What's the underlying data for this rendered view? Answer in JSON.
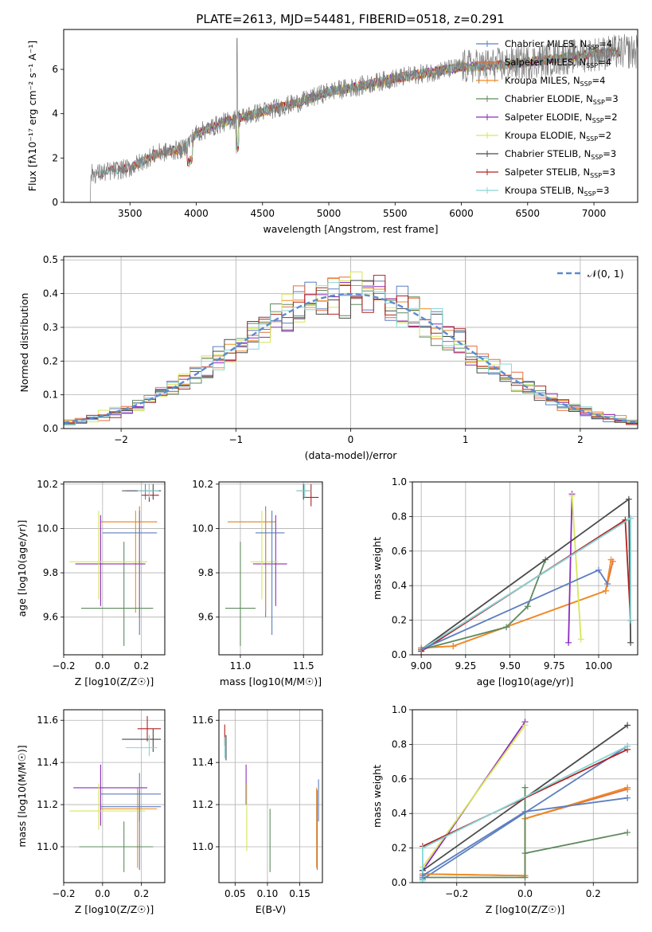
{
  "title": "PLATE=2613, MJD=54481, FIBERID=0518, z=0.291",
  "models": [
    {
      "name": "Chabrier MILES",
      "nssp": "4",
      "color": "#5d7fbf"
    },
    {
      "name": "Salpeter MILES",
      "nssp": "4",
      "color": "#e26f3b"
    },
    {
      "name": "Kroupa MILES",
      "nssp": "4",
      "color": "#f08a24"
    },
    {
      "name": "Chabrier ELODIE",
      "nssp": "3",
      "color": "#5e8a5e"
    },
    {
      "name": "Salpeter ELODIE",
      "nssp": "2",
      "color": "#8c2dbf"
    },
    {
      "name": "Kroupa ELODIE",
      "nssp": "2",
      "color": "#d6e65a"
    },
    {
      "name": "Chabrier STELIB",
      "nssp": "3",
      "color": "#4a4a4a"
    },
    {
      "name": "Salpeter STELIB",
      "nssp": "3",
      "color": "#b22222"
    },
    {
      "name": "Kroupa STELIB",
      "nssp": "3",
      "color": "#87d5d5"
    }
  ],
  "legend_prefix": "N",
  "legend_sub": "SSP",
  "chart_data": [
    {
      "type": "line",
      "panel": "spectrum",
      "xlabel": "wavelength [Angstrom, rest frame]",
      "ylabel": "Flux [f",
      "ylabel_full": "Flux [fλ10⁻¹⁷ erg cm⁻² s⁻¹ A⁻¹]",
      "xlim": [
        3000,
        7330
      ],
      "ylim": [
        0,
        7.8
      ],
      "xticks": [
        "3500",
        "4000",
        "4500",
        "5000",
        "5500",
        "6000",
        "6500",
        "7000"
      ],
      "xtick_values": [
        3500,
        4000,
        4500,
        5000,
        5500,
        6000,
        6500,
        7000
      ],
      "yticks": [
        "0",
        "2",
        "4",
        "6"
      ],
      "ytick_values": [
        0,
        2,
        4,
        6
      ],
      "continuum": {
        "x": [
          3200,
          3250,
          3500,
          3700,
          3900,
          4000,
          4200,
          4500,
          4800,
          5000,
          5200,
          5500,
          5800,
          6000,
          6300,
          6600,
          7000,
          7200
        ],
        "y": [
          1.3,
          1.3,
          1.55,
          2.2,
          2.4,
          3.1,
          3.6,
          4.1,
          4.55,
          5.0,
          5.2,
          5.6,
          5.9,
          6.1,
          6.2,
          6.4,
          6.7,
          6.8
        ]
      },
      "legend": "upper-right",
      "grid": false
    },
    {
      "type": "step",
      "panel": "residuals",
      "xlabel": "(data-model)/error",
      "ylabel": "Normed distribution",
      "xlim": [
        -2.5,
        2.5
      ],
      "ylim": [
        0,
        0.51
      ],
      "xticks": [
        "−2",
        "−1",
        "0",
        "1",
        "2"
      ],
      "xtick_values": [
        -2,
        -1,
        0,
        1,
        2
      ],
      "yticks": [
        "0.0",
        "0.1",
        "0.2",
        "0.3",
        "0.4",
        "0.5"
      ],
      "ytick_values": [
        0,
        0.1,
        0.2,
        0.3,
        0.4,
        0.5
      ],
      "normal_label": "𝒩(0, 1)",
      "normal_color": "#5b8bd0",
      "legend": "upper-right",
      "grid": true
    },
    {
      "type": "errorbar",
      "panel": "age_vs_Z",
      "xlabel": "Z [log10(Z/Z☉)]",
      "ylabel": "age  [log10(age/yr)]",
      "xlim": [
        -0.2,
        0.32
      ],
      "ylim": [
        9.43,
        10.21
      ],
      "xticks": [
        "−0.2",
        "0.0",
        "0.2"
      ],
      "xtick_values": [
        -0.2,
        0,
        0.2
      ],
      "yticks": [
        "9.6",
        "9.8",
        "10.0",
        "10.2"
      ],
      "ytick_values": [
        9.6,
        9.8,
        10.0,
        10.2
      ],
      "points": [
        {
          "m": 0,
          "x": 0.22,
          "xe": [
            0.12,
            0.3
          ],
          "y": 10.17,
          "ye": [
            10.13,
            10.2
          ]
        },
        {
          "m": 1,
          "x": 0.19,
          "xe": [
            0.0,
            0.28
          ],
          "y": 10.03,
          "ye": [
            9.6,
            10.1
          ]
        },
        {
          "m": 2,
          "x": 0.17,
          "xe": [
            -0.01,
            0.27
          ],
          "y": 10.03,
          "ye": [
            9.62,
            10.08
          ]
        },
        {
          "m": 3,
          "x": 0.11,
          "xe": [
            -0.11,
            0.26
          ],
          "y": 9.64,
          "ye": [
            9.47,
            9.94
          ]
        },
        {
          "m": 4,
          "x": -0.01,
          "xe": [
            -0.14,
            0.22
          ],
          "y": 9.84,
          "ye": [
            9.65,
            10.06
          ]
        },
        {
          "m": 5,
          "x": -0.02,
          "xe": [
            -0.17,
            0.23
          ],
          "y": 9.85,
          "ye": [
            9.68,
            10.08
          ]
        },
        {
          "m": 6,
          "x": 0.26,
          "xe": [
            0.1,
            0.3
          ],
          "y": 10.17,
          "ye": [
            10.13,
            10.2
          ]
        },
        {
          "m": 7,
          "x": 0.24,
          "xe": [
            0.2,
            0.29
          ],
          "y": 10.15,
          "ye": [
            10.12,
            10.2
          ]
        },
        {
          "m": 8,
          "x": 0.24,
          "xe": [
            0.18,
            0.29
          ],
          "y": 10.17,
          "ye": [
            10.14,
            10.2
          ]
        },
        {
          "m": 0,
          "x": 0.19,
          "xe": [
            0.0,
            0.28
          ],
          "y": 9.98,
          "ye": [
            9.52,
            10.08
          ]
        }
      ],
      "grid": true
    },
    {
      "type": "errorbar",
      "panel": "age_vs_mass",
      "xlabel": "mass [log10(M/M☉)]",
      "ylabel": "",
      "xlim": [
        10.83,
        11.65
      ],
      "ylim": [
        9.43,
        10.21
      ],
      "xticks": [
        "11.0",
        "11.5"
      ],
      "xtick_values": [
        11.0,
        11.5
      ],
      "yticks": [
        "9.6",
        "9.8",
        "10.0",
        "10.2"
      ],
      "ytick_values": [
        9.6,
        9.8,
        10.0,
        10.2
      ],
      "points": [
        {
          "m": 0,
          "x": 11.2,
          "xe": [
            10.9,
            11.28
          ],
          "y": 10.03,
          "ye": [
            9.6,
            10.1
          ]
        },
        {
          "m": 2,
          "x": 11.2,
          "xe": [
            10.9,
            11.28
          ],
          "y": 10.03,
          "ye": [
            9.62,
            10.08
          ]
        },
        {
          "m": 3,
          "x": 11.0,
          "xe": [
            10.88,
            11.12
          ],
          "y": 9.64,
          "ye": [
            9.47,
            9.94
          ]
        },
        {
          "m": 4,
          "x": 11.28,
          "xe": [
            11.1,
            11.37
          ],
          "y": 9.84,
          "ye": [
            9.65,
            10.06
          ]
        },
        {
          "m": 5,
          "x": 11.17,
          "xe": [
            11.08,
            11.3
          ],
          "y": 9.85,
          "ye": [
            9.68,
            10.08
          ]
        },
        {
          "m": 6,
          "x": 11.5,
          "xe": [
            11.45,
            11.56
          ],
          "y": 10.17,
          "ye": [
            10.13,
            10.2
          ]
        },
        {
          "m": 7,
          "x": 11.56,
          "xe": [
            11.5,
            11.62
          ],
          "y": 10.14,
          "ye": [
            10.1,
            10.2
          ]
        },
        {
          "m": 8,
          "x": 11.51,
          "xe": [
            11.44,
            11.56
          ],
          "y": 10.17,
          "ye": [
            10.14,
            10.2
          ]
        },
        {
          "m": 0,
          "x": 11.25,
          "xe": [
            11.12,
            11.35
          ],
          "y": 9.98,
          "ye": [
            9.52,
            10.08
          ]
        }
      ],
      "grid": true
    },
    {
      "type": "line",
      "panel": "weight_vs_age",
      "xlabel": "age  [log10(age/yr)]",
      "ylabel": "mass weight",
      "xlim": [
        8.95,
        10.22
      ],
      "ylim": [
        0,
        1.0
      ],
      "xticks": [
        "9.00",
        "9.25",
        "9.50",
        "9.75",
        "10.00"
      ],
      "xtick_values": [
        9.0,
        9.25,
        9.5,
        9.75,
        10.0
      ],
      "yticks": [
        "0.0",
        "0.2",
        "0.4",
        "0.6",
        "0.8",
        "1.0"
      ],
      "ytick_values": [
        0,
        0.2,
        0.4,
        0.6,
        0.8,
        1.0
      ],
      "series": [
        {
          "m": 0,
          "x": [
            9.0,
            10.18
          ],
          "y": [
            0.03,
            0.79
          ]
        },
        {
          "m": 1,
          "x": [
            9.0,
            9.18,
            10.04,
            10.08
          ],
          "y": [
            0.04,
            0.05,
            0.37,
            0.54
          ]
        },
        {
          "m": 2,
          "x": [
            9.0,
            9.18,
            10.04,
            10.07
          ],
          "y": [
            0.04,
            0.05,
            0.37,
            0.55
          ]
        },
        {
          "m": 3,
          "x": [
            9.0,
            9.48,
            9.6,
            9.7
          ],
          "y": [
            0.03,
            0.16,
            0.28,
            0.55
          ]
        },
        {
          "m": 4,
          "x": [
            9.83,
            9.85
          ],
          "y": [
            0.07,
            0.93
          ]
        },
        {
          "m": 5,
          "x": [
            9.85,
            9.9
          ],
          "y": [
            0.92,
            0.09
          ]
        },
        {
          "m": 6,
          "x": [
            9.0,
            10.17,
            10.18
          ],
          "y": [
            0.03,
            0.9,
            0.07
          ]
        },
        {
          "m": 7,
          "x": [
            9.0,
            10.15,
            10.18
          ],
          "y": [
            0.02,
            0.78,
            0.2
          ]
        },
        {
          "m": 8,
          "x": [
            9.0,
            10.18,
            10.18
          ],
          "y": [
            0.03,
            0.79,
            0.2
          ]
        },
        {
          "m": 0,
          "x": [
            9.0,
            10.0,
            10.05
          ],
          "y": [
            0.03,
            0.49,
            0.41
          ]
        }
      ],
      "grid": true
    },
    {
      "type": "errorbar",
      "panel": "mass_vs_Z",
      "xlabel": "Z [log10(Z/Z☉)]",
      "ylabel": "mass [log10(M/M☉)]",
      "xlim": [
        -0.2,
        0.32
      ],
      "ylim": [
        10.83,
        11.65
      ],
      "xticks": [
        "−0.2",
        "0.0",
        "0.2"
      ],
      "xtick_values": [
        -0.2,
        0,
        0.2
      ],
      "yticks": [
        "11.0",
        "11.2",
        "11.4",
        "11.6"
      ],
      "ytick_values": [
        11.0,
        11.2,
        11.4,
        11.6
      ],
      "points": [
        {
          "m": 0,
          "x": 0.19,
          "xe": [
            -0.01,
            0.3
          ],
          "y": 11.19,
          "ye": [
            10.89,
            11.27
          ]
        },
        {
          "m": 2,
          "x": 0.18,
          "xe": [
            -0.01,
            0.28
          ],
          "y": 11.18,
          "ye": [
            10.9,
            11.28
          ]
        },
        {
          "m": 3,
          "x": 0.11,
          "xe": [
            -0.12,
            0.26
          ],
          "y": 11.0,
          "ye": [
            10.88,
            11.12
          ]
        },
        {
          "m": 4,
          "x": -0.01,
          "xe": [
            -0.15,
            0.23
          ],
          "y": 11.28,
          "ye": [
            11.1,
            11.39
          ]
        },
        {
          "m": 5,
          "x": -0.02,
          "xe": [
            -0.17,
            0.22
          ],
          "y": 11.17,
          "ye": [
            11.08,
            11.3
          ]
        },
        {
          "m": 6,
          "x": 0.26,
          "xe": [
            0.1,
            0.3
          ],
          "y": 11.51,
          "ye": [
            11.45,
            11.56
          ]
        },
        {
          "m": 7,
          "x": 0.23,
          "xe": [
            0.18,
            0.3
          ],
          "y": 11.56,
          "ye": [
            11.5,
            11.62
          ]
        },
        {
          "m": 8,
          "x": 0.24,
          "xe": [
            0.12,
            0.28
          ],
          "y": 11.47,
          "ye": [
            11.43,
            11.53
          ]
        },
        {
          "m": 0,
          "x": 0.19,
          "xe": [
            -0.01,
            0.3
          ],
          "y": 11.25,
          "ye": [
            11.12,
            11.35
          ]
        }
      ],
      "grid": true
    },
    {
      "type": "errorbar",
      "panel": "mass_vs_ebv",
      "xlabel": "E(B-V)",
      "ylabel": "",
      "xlim": [
        0.025,
        0.185
      ],
      "ylim": [
        10.83,
        11.65
      ],
      "xticks": [
        "0.05",
        "0.10",
        "0.15"
      ],
      "xtick_values": [
        0.05,
        0.1,
        0.15
      ],
      "yticks": [
        "11.0",
        "11.2",
        "11.4",
        "11.6"
      ],
      "ytick_values": [
        11.0,
        11.2,
        11.4,
        11.6
      ],
      "points": [
        {
          "m": 0,
          "x": 0.177,
          "xe": [
            0.177,
            0.177
          ],
          "y": 11.19,
          "ye": [
            10.89,
            11.27
          ]
        },
        {
          "m": 2,
          "x": 0.176,
          "xe": [
            0.176,
            0.176
          ],
          "y": 11.18,
          "ye": [
            10.9,
            11.28
          ]
        },
        {
          "m": 3,
          "x": 0.104,
          "xe": [
            0.104,
            0.104
          ],
          "y": 11.0,
          "ye": [
            10.88,
            11.18
          ]
        },
        {
          "m": 4,
          "x": 0.067,
          "xe": [
            0.067,
            0.067
          ],
          "y": 11.28,
          "ye": [
            11.2,
            11.39
          ]
        },
        {
          "m": 5,
          "x": 0.068,
          "xe": [
            0.068,
            0.068
          ],
          "y": 11.17,
          "ye": [
            10.98,
            11.3
          ]
        },
        {
          "m": 6,
          "x": 0.036,
          "xe": [
            0.036,
            0.036
          ],
          "y": 11.47,
          "ye": [
            11.41,
            11.53
          ]
        },
        {
          "m": 7,
          "x": 0.034,
          "xe": [
            0.034,
            0.034
          ],
          "y": 11.53,
          "ye": [
            11.48,
            11.58
          ]
        },
        {
          "m": 8,
          "x": 0.034,
          "xe": [
            0.034,
            0.034
          ],
          "y": 11.47,
          "ye": [
            11.42,
            11.52
          ]
        },
        {
          "m": 0,
          "x": 0.179,
          "xe": [
            0.179,
            0.179
          ],
          "y": 11.25,
          "ye": [
            11.12,
            11.32
          ]
        }
      ],
      "grid": true
    },
    {
      "type": "line",
      "panel": "weight_vs_Z",
      "xlabel": "Z [log10(Z/Z☉)]",
      "ylabel": "mass weight",
      "xlim": [
        -0.33,
        0.33
      ],
      "ylim": [
        0,
        1.0
      ],
      "xticks": [
        "−0.2",
        "0.0",
        "0.2"
      ],
      "xtick_values": [
        -0.2,
        0,
        0.2
      ],
      "yticks": [
        "0.0",
        "0.2",
        "0.4",
        "0.6",
        "0.8",
        "1.0"
      ],
      "ytick_values": [
        0,
        0.2,
        0.4,
        0.6,
        0.8,
        1.0
      ],
      "series": [
        {
          "m": 0,
          "x": [
            -0.3,
            0.3
          ],
          "y": [
            0.02,
            0.79
          ]
        },
        {
          "m": 1,
          "x": [
            -0.3,
            0.0,
            0.0,
            0.3
          ],
          "y": [
            0.05,
            0.04,
            0.37,
            0.54
          ]
        },
        {
          "m": 2,
          "x": [
            -0.3,
            0.0,
            0.0,
            0.3
          ],
          "y": [
            0.05,
            0.04,
            0.37,
            0.55
          ]
        },
        {
          "m": 3,
          "x": [
            -0.3,
            0.0,
            0.0,
            0.0,
            0.3
          ],
          "y": [
            0.03,
            0.03,
            0.55,
            0.17,
            0.29
          ]
        },
        {
          "m": 4,
          "x": [
            -0.3,
            0.0
          ],
          "y": [
            0.07,
            0.93
          ]
        },
        {
          "m": 5,
          "x": [
            -0.3,
            0.0
          ],
          "y": [
            0.09,
            0.91
          ]
        },
        {
          "m": 6,
          "x": [
            -0.3,
            0.3
          ],
          "y": [
            0.07,
            0.91
          ]
        },
        {
          "m": 7,
          "x": [
            -0.3,
            0.3
          ],
          "y": [
            0.21,
            0.77
          ]
        },
        {
          "m": 8,
          "x": [
            -0.3,
            -0.3,
            0.3
          ],
          "y": [
            0.01,
            0.2,
            0.79
          ]
        },
        {
          "m": 0,
          "x": [
            -0.3,
            0.0,
            0.3
          ],
          "y": [
            0.04,
            0.41,
            0.49
          ]
        }
      ],
      "grid": true
    }
  ]
}
